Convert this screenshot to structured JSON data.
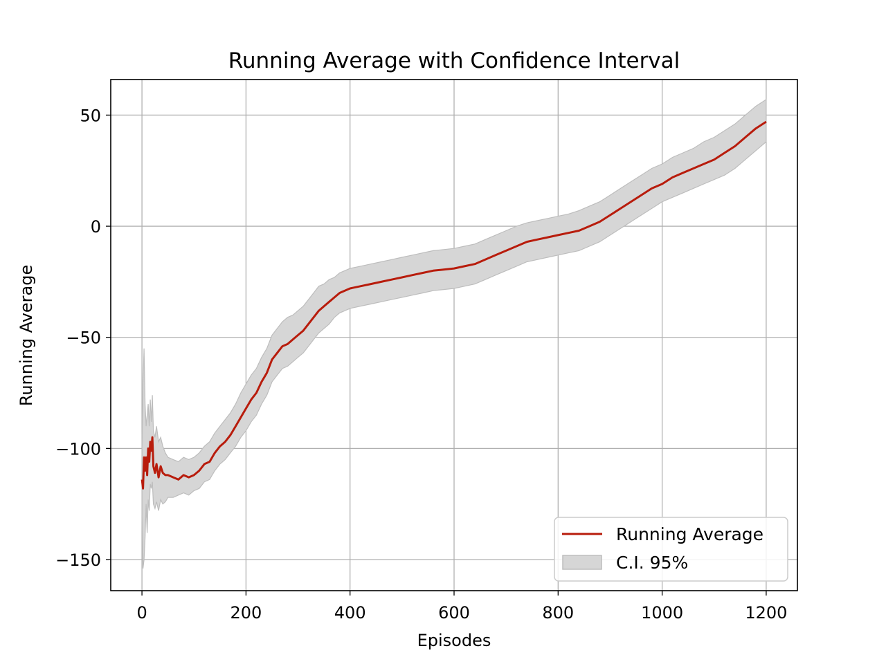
{
  "chart_data": {
    "type": "line",
    "title": "Running Average with Confidence Interval",
    "xlabel": "Episodes",
    "ylabel": "Running Average",
    "xlim": [
      -60,
      1260
    ],
    "ylim": [
      -164,
      66
    ],
    "x_ticks": [
      0,
      200,
      400,
      600,
      800,
      1000,
      1200
    ],
    "y_ticks": [
      50,
      0,
      -50,
      -100,
      -150
    ],
    "x_tick_labels": [
      "0",
      "200",
      "400",
      "600",
      "800",
      "1000",
      "1200"
    ],
    "y_tick_labels": [
      "50",
      "0",
      "−50",
      "−100",
      "−150"
    ],
    "grid": true,
    "legend": {
      "placement": "lower-right",
      "entries": [
        "Running Average",
        "C.I. 95%"
      ]
    },
    "colors": {
      "line": "#b81c0c",
      "band_fill": "#d6d6d6",
      "band_edge": "#bdbdbd",
      "grid": "#b0b0b0"
    },
    "series": [
      {
        "name": "Running Average",
        "x": [
          0,
          2,
          4,
          6,
          8,
          10,
          12,
          14,
          16,
          18,
          20,
          22,
          25,
          28,
          32,
          36,
          40,
          45,
          50,
          60,
          70,
          80,
          90,
          100,
          110,
          120,
          130,
          140,
          150,
          160,
          170,
          180,
          190,
          200,
          210,
          220,
          230,
          240,
          250,
          260,
          270,
          280,
          290,
          300,
          310,
          320,
          330,
          340,
          350,
          360,
          370,
          380,
          390,
          400,
          420,
          440,
          460,
          480,
          500,
          520,
          540,
          560,
          580,
          600,
          620,
          640,
          660,
          680,
          700,
          720,
          740,
          760,
          780,
          800,
          820,
          840,
          860,
          880,
          900,
          920,
          940,
          960,
          980,
          1000,
          1020,
          1040,
          1060,
          1080,
          1100,
          1120,
          1140,
          1160,
          1180,
          1200
        ],
        "y": [
          -114,
          -118,
          -104,
          -110,
          -104,
          -112,
          -100,
          -106,
          -97,
          -101,
          -95,
          -108,
          -111,
          -107,
          -113,
          -108,
          -111,
          -112,
          -112,
          -113,
          -114,
          -112,
          -113,
          -112,
          -110,
          -107,
          -106,
          -102,
          -99,
          -97,
          -94,
          -90,
          -86,
          -82,
          -78,
          -75,
          -70,
          -66,
          -60,
          -57,
          -54,
          -53,
          -51,
          -49,
          -47,
          -44,
          -41,
          -38,
          -36,
          -34,
          -32,
          -30,
          -29,
          -28,
          -27,
          -26,
          -25,
          -24,
          -23,
          -22,
          -21,
          -20,
          -19.5,
          -19,
          -18,
          -17,
          -15,
          -13,
          -11,
          -9,
          -7,
          -6,
          -5,
          -4,
          -3,
          -2,
          0,
          2,
          5,
          8,
          11,
          14,
          17,
          19,
          22,
          24,
          26,
          28,
          30,
          33,
          36,
          40,
          44,
          47
        ]
      },
      {
        "name": "C.I. 95%",
        "x": [
          0,
          2,
          4,
          6,
          8,
          10,
          12,
          14,
          16,
          18,
          20,
          22,
          25,
          28,
          32,
          36,
          40,
          45,
          50,
          60,
          70,
          80,
          90,
          100,
          110,
          120,
          130,
          140,
          150,
          160,
          170,
          180,
          190,
          200,
          210,
          220,
          230,
          240,
          250,
          260,
          270,
          280,
          290,
          300,
          310,
          320,
          330,
          340,
          350,
          360,
          370,
          380,
          390,
          400,
          420,
          440,
          460,
          480,
          500,
          520,
          540,
          560,
          580,
          600,
          620,
          640,
          660,
          680,
          700,
          720,
          740,
          760,
          780,
          800,
          820,
          840,
          860,
          880,
          900,
          920,
          940,
          960,
          980,
          1000,
          1020,
          1040,
          1060,
          1080,
          1100,
          1120,
          1140,
          1160,
          1180,
          1200
        ],
        "upper": [
          -100,
          -70,
          -55,
          -80,
          -90,
          -85,
          -80,
          -90,
          -78,
          -88,
          -76,
          -92,
          -95,
          -90,
          -97,
          -95,
          -99,
          -102,
          -104,
          -105,
          -106,
          -104,
          -105,
          -104,
          -102,
          -99,
          -97,
          -93,
          -90,
          -87,
          -84,
          -80,
          -75,
          -71,
          -67,
          -64,
          -59,
          -55,
          -49,
          -46,
          -43,
          -41,
          -40,
          -38,
          -36,
          -33,
          -30,
          -27,
          -26,
          -24,
          -23,
          -21,
          -20,
          -19,
          -18,
          -17,
          -16,
          -15,
          -14,
          -13,
          -12,
          -11,
          -10.5,
          -10,
          -9,
          -8,
          -6,
          -4,
          -2,
          0,
          1.5,
          2.5,
          3.5,
          4.5,
          5.5,
          7,
          9,
          11,
          14,
          17,
          20,
          23,
          26,
          28,
          31,
          33,
          35,
          38,
          40,
          43,
          46,
          50,
          54,
          57
        ],
        "lower": [
          -130,
          -154,
          -150,
          -140,
          -125,
          -138,
          -123,
          -128,
          -116,
          -118,
          -115,
          -125,
          -127,
          -124,
          -128,
          -123,
          -125,
          -124,
          -122,
          -122,
          -121,
          -120,
          -121,
          -119,
          -118,
          -115,
          -114,
          -110,
          -107,
          -105,
          -102,
          -99,
          -95,
          -92,
          -88,
          -85,
          -80,
          -76,
          -70,
          -67,
          -64,
          -63,
          -61,
          -59,
          -57,
          -54,
          -51,
          -48,
          -46,
          -44,
          -41,
          -39,
          -38,
          -37,
          -36,
          -35,
          -34,
          -33,
          -32,
          -31,
          -30,
          -29,
          -28.5,
          -28,
          -27,
          -26,
          -24,
          -22,
          -20,
          -18,
          -16,
          -15,
          -14,
          -13,
          -12,
          -11,
          -9,
          -7,
          -4,
          -1,
          2,
          5,
          8,
          11,
          13,
          15,
          17,
          19,
          21,
          23,
          26,
          30,
          34,
          38
        ]
      }
    ]
  }
}
